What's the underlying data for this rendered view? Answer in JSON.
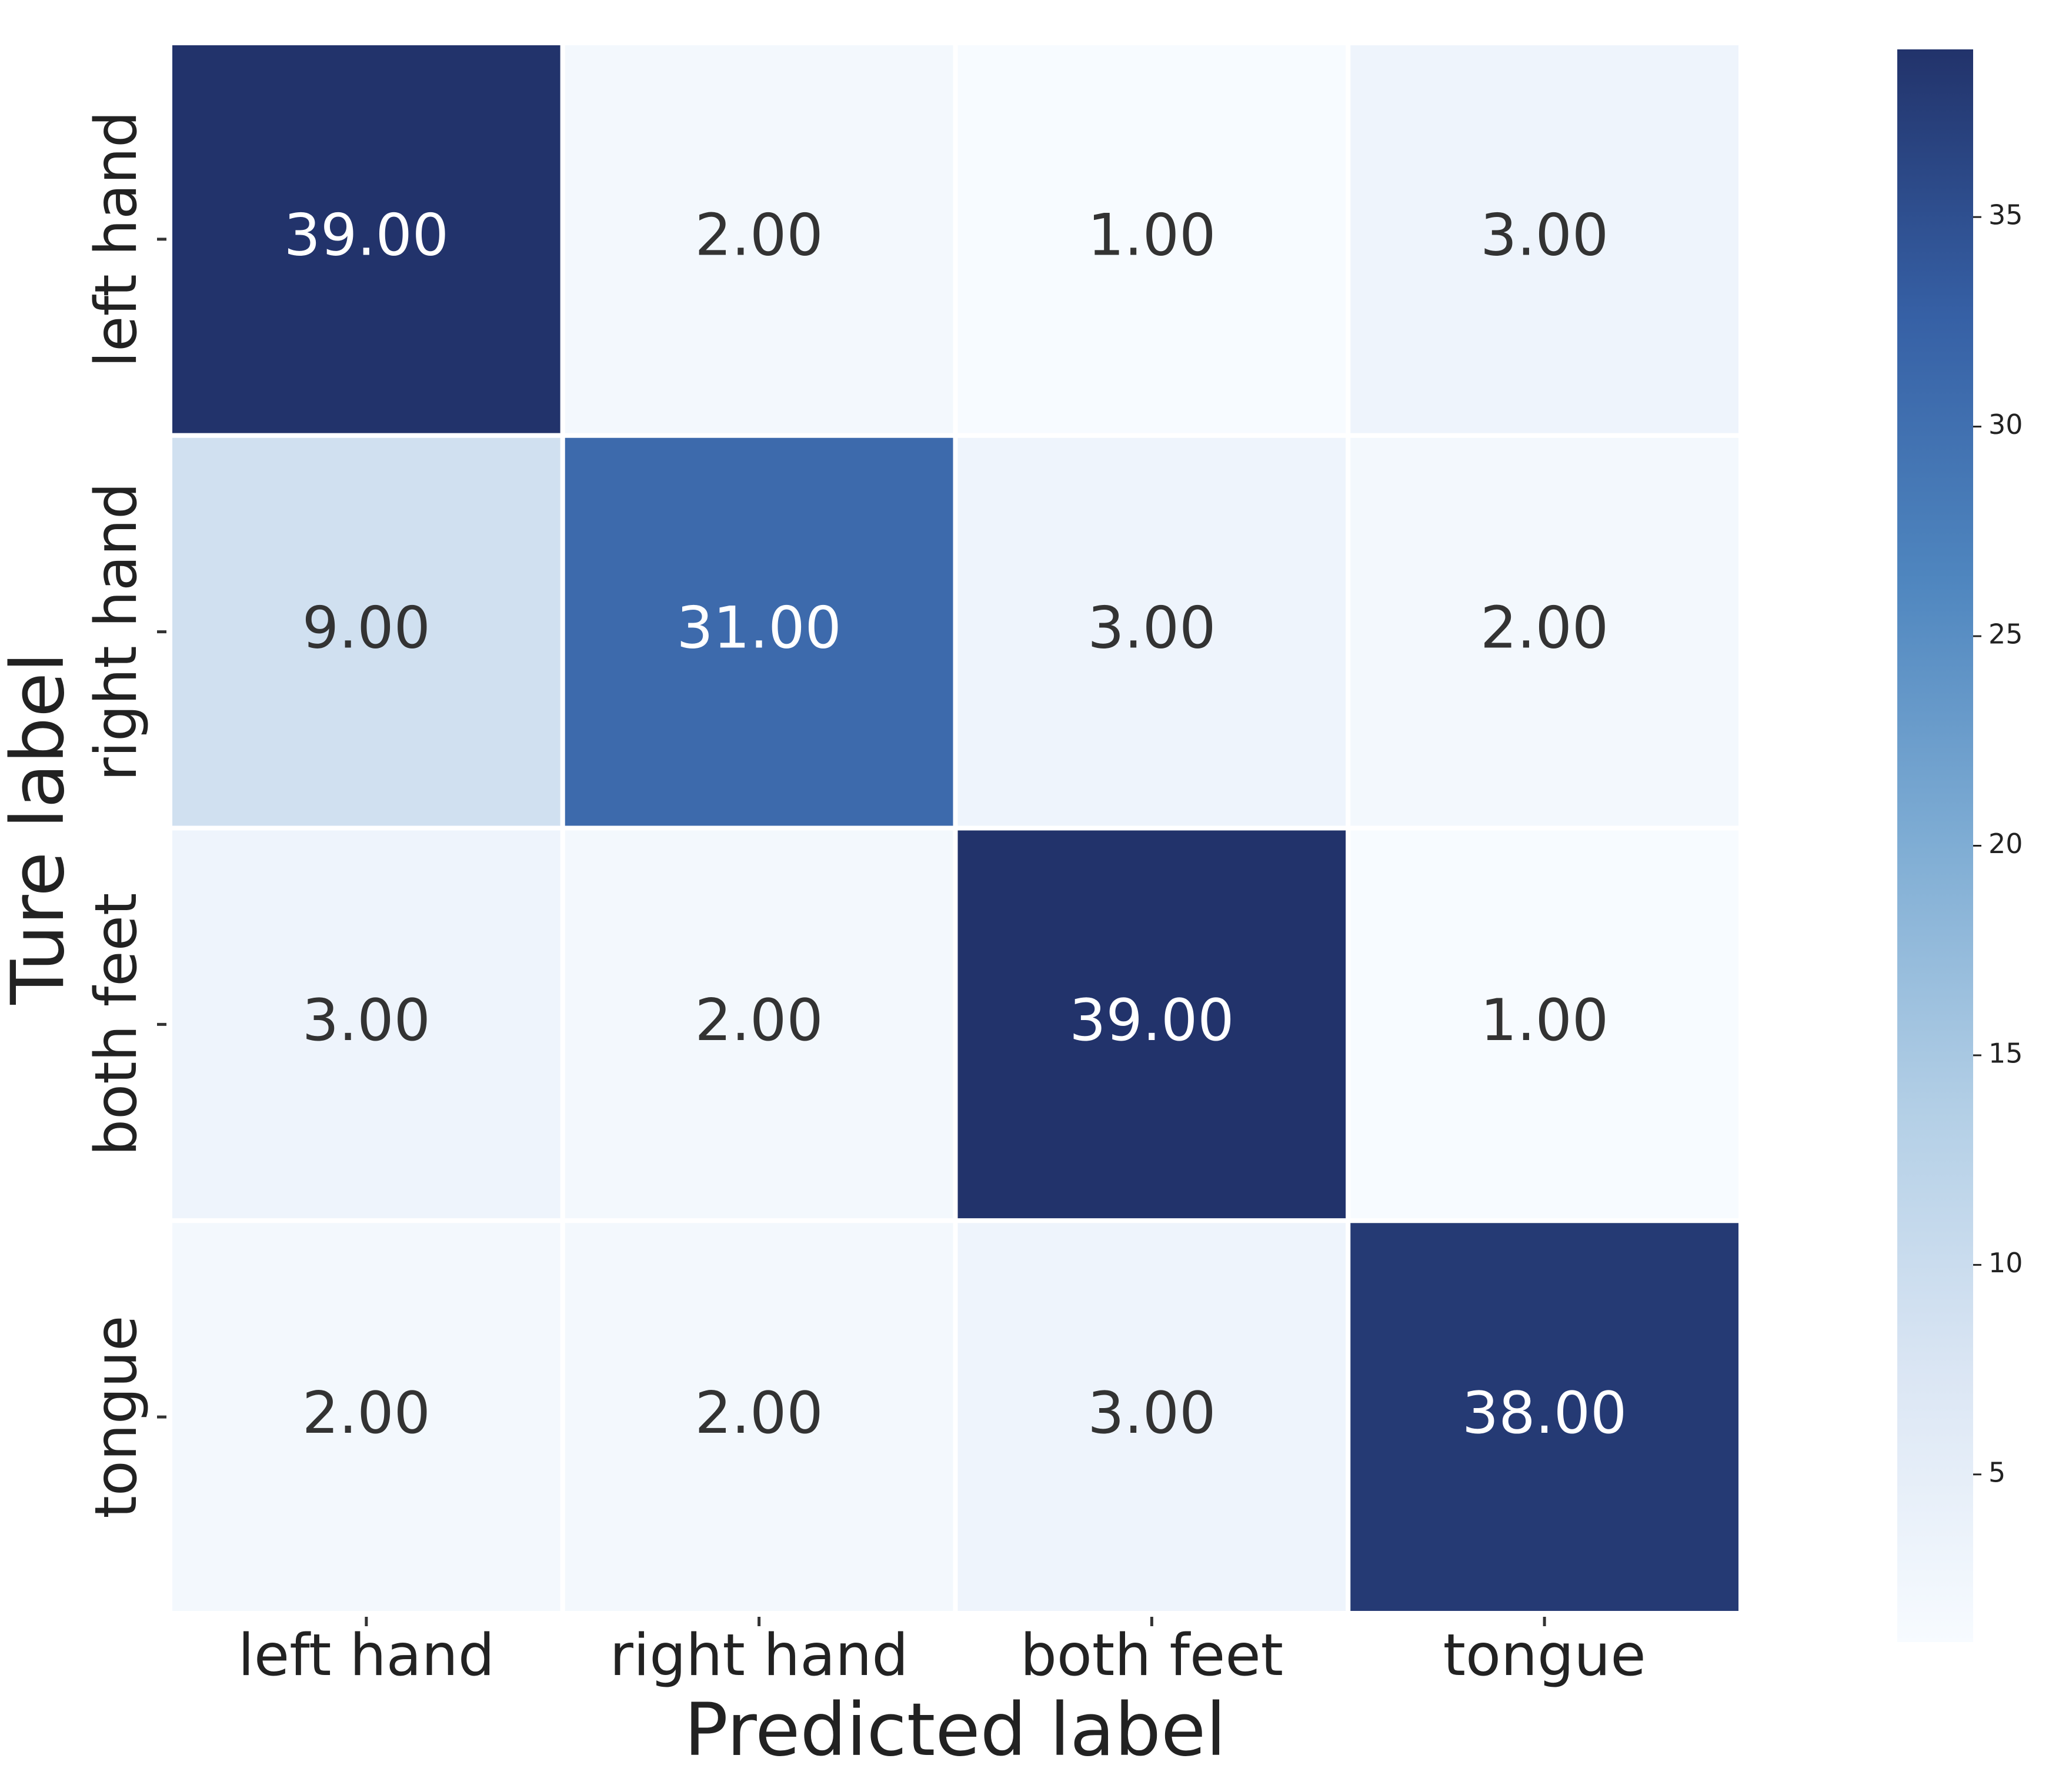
{
  "chart_data": {
    "type": "heatmap",
    "x_categories": [
      "left hand",
      "right hand",
      "both feet",
      "tongue"
    ],
    "y_categories": [
      "left hand",
      "right hand",
      "both feet",
      "tongue"
    ],
    "values": [
      [
        39,
        2,
        1,
        3
      ],
      [
        9,
        31,
        3,
        2
      ],
      [
        3,
        2,
        39,
        1
      ],
      [
        2,
        2,
        3,
        38
      ]
    ],
    "value_labels": [
      [
        "39.00",
        "2.00",
        "1.00",
        "3.00"
      ],
      [
        "9.00",
        "31.00",
        "3.00",
        "2.00"
      ],
      [
        "3.00",
        "2.00",
        "39.00",
        "1.00"
      ],
      [
        "2.00",
        "2.00",
        "3.00",
        "38.00"
      ]
    ],
    "xlabel": "Predicted label",
    "ylabel": "Ture label",
    "zlim": [
      1,
      39
    ],
    "zticks": [
      5,
      10,
      15,
      20,
      25,
      30,
      35
    ],
    "colormap": [
      "#f7fbff",
      "#dbe6f4",
      "#b3cfe6",
      "#7fadd4",
      "#4f86bf",
      "#3660a5",
      "#22336b"
    ]
  }
}
